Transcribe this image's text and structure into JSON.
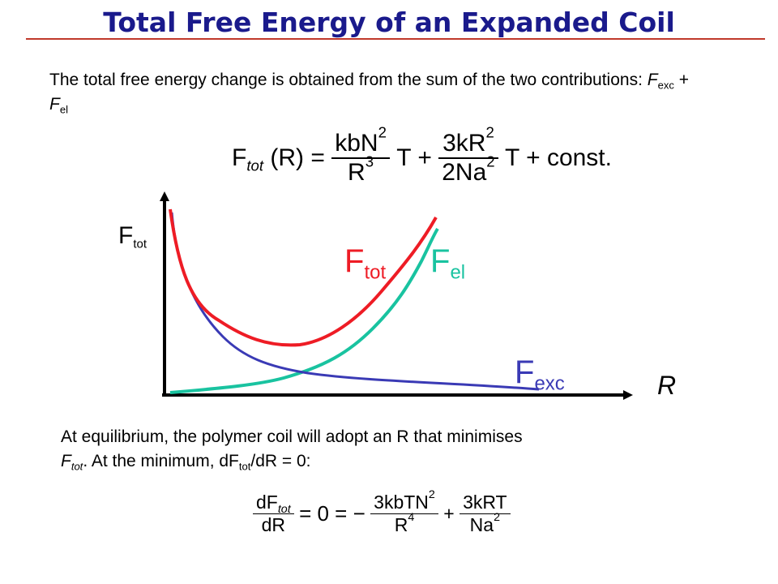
{
  "title": "Total Free Energy of an Expanded Coil",
  "colors": {
    "title": "#1a1a8c",
    "rule": "#c0392b",
    "ftot": "#ee1c25",
    "fel": "#19c3a0",
    "fexc": "#3a3ab5",
    "axis": "#000000"
  },
  "intro": {
    "text": "The total free energy change is obtained from the sum of the two contributions:",
    "f": "F",
    "exc": "exc",
    "plus": "+",
    "el": "el"
  },
  "eq1": {
    "lhs": "F",
    "lhs_sub": "tot",
    "lhs_arg": "(R) =",
    "t1_num": "kbN",
    "t1_num_sup": "2",
    "t1_den": "R",
    "t1_den_sup": "3",
    "t1_var": "T +",
    "t2_num": "3kR",
    "t2_num_sup": "2",
    "t2_den": "2Na",
    "t2_den_sup": "2",
    "t2_var": "T + const."
  },
  "graph": {
    "y_axis_label": "F",
    "y_axis_sub": "tot",
    "x_axis_label": "R",
    "curves": [
      {
        "name": "ftot",
        "label": "F",
        "sub": "tot"
      },
      {
        "name": "fel",
        "label": "F",
        "sub": "el"
      },
      {
        "name": "fexc",
        "label": "F",
        "sub": "exc"
      }
    ]
  },
  "equilibrium": {
    "line1": "At equilibrium, the polymer coil will adopt an R that minimises",
    "f": "F",
    "tot": "tot",
    "line2a": ". At the minimum, dF",
    "line2b": "/dR = 0:"
  },
  "eq2": {
    "d_num": "dF",
    "d_num_sub": "tot",
    "d_den": "dR",
    "mid": "= 0 = −",
    "t1_num": "3kbTN",
    "t1_num_sup": "2",
    "t1_den": "R",
    "t1_den_sup": "4",
    "plus": "+",
    "t2_num": "3kRT",
    "t2_den": "Na",
    "t2_den_sup": "2"
  }
}
